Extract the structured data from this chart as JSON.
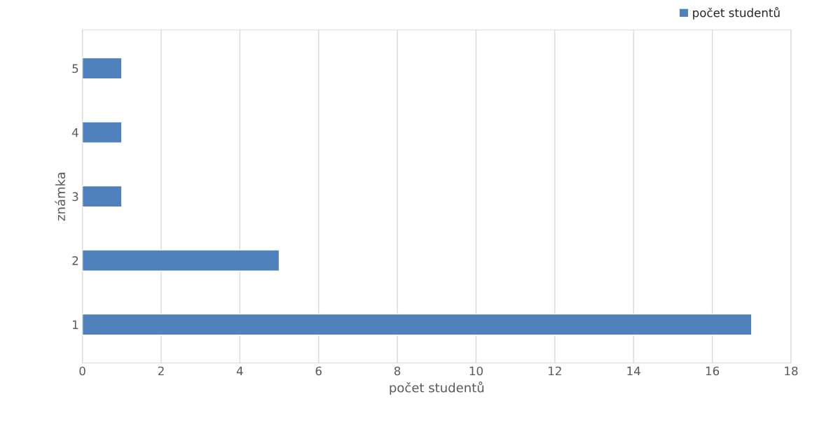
{
  "chart_data": {
    "type": "bar",
    "orientation": "horizontal",
    "xlabel": "počet studentů",
    "ylabel": "známka",
    "categories": [
      "5",
      "4",
      "3",
      "2",
      "1"
    ],
    "series": [
      {
        "name": "počet studentů",
        "color": "#4f81bd",
        "values": [
          1,
          1,
          1,
          5,
          17
        ]
      }
    ],
    "xlim": [
      0,
      18
    ],
    "xticks": [
      0,
      2,
      4,
      6,
      8,
      10,
      12,
      14,
      16,
      18
    ],
    "grid": "x",
    "legend": "top right"
  }
}
